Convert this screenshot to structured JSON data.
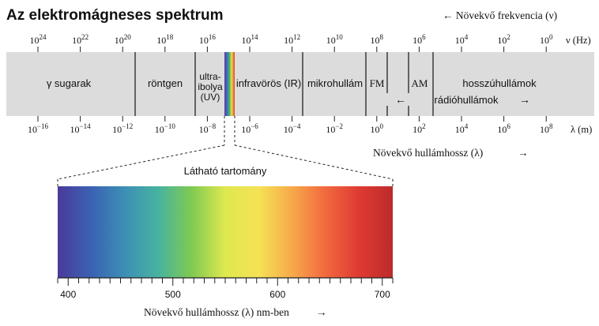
{
  "title": "Az elektromágneses spektrum",
  "freq_axis": {
    "heading": "← Növekvő frekvencia (ν)",
    "unit": "ν (Hz)",
    "ticks": [
      {
        "base": "10",
        "exp": "24"
      },
      {
        "base": "10",
        "exp": "22"
      },
      {
        "base": "10",
        "exp": "20"
      },
      {
        "base": "10",
        "exp": "18"
      },
      {
        "base": "10",
        "exp": "16"
      },
      {
        "base": "10",
        "exp": "14"
      },
      {
        "base": "10",
        "exp": "12"
      },
      {
        "base": "10",
        "exp": "10"
      },
      {
        "base": "10",
        "exp": "8"
      },
      {
        "base": "10",
        "exp": "6"
      },
      {
        "base": "10",
        "exp": "4"
      },
      {
        "base": "10",
        "exp": "2"
      },
      {
        "base": "10",
        "exp": "0"
      }
    ]
  },
  "wave_axis": {
    "heading": "Növekvő hullámhossz (λ)",
    "heading_arrow": "→",
    "unit": "λ (m)",
    "ticks": [
      {
        "base": "10",
        "exp": "−16"
      },
      {
        "base": "10",
        "exp": "−14"
      },
      {
        "base": "10",
        "exp": "−12"
      },
      {
        "base": "10",
        "exp": "−10"
      },
      {
        "base": "10",
        "exp": "−8"
      },
      {
        "base": "10",
        "exp": "−6"
      },
      {
        "base": "10",
        "exp": "−4"
      },
      {
        "base": "10",
        "exp": "−2"
      },
      {
        "base": "10",
        "exp": "0"
      },
      {
        "base": "10",
        "exp": "2"
      },
      {
        "base": "10",
        "exp": "4"
      },
      {
        "base": "10",
        "exp": "6"
      },
      {
        "base": "10",
        "exp": "8"
      }
    ]
  },
  "bands": {
    "gamma": "γ sugarak",
    "xray": "röntgen",
    "uv_line1": "ultra-",
    "uv_line2": "ibolya",
    "uv_line3": "(UV)",
    "ir": "infravörös (IR)",
    "micro": "mikrohullám",
    "fm": "FM",
    "am": "AM",
    "longwave": "hosszúhullámok",
    "radio": "rádióhullámok",
    "radio_arrow_left": "←",
    "radio_arrow_right": "→"
  },
  "visible": {
    "label": "Látható tartomány",
    "scale_labels": [
      "400",
      "500",
      "600",
      "700"
    ],
    "axis_label": "Növekvő hullámhossz (λ) nm-ben",
    "axis_arrow": "→"
  },
  "colors": {
    "band": "#dcdcdc",
    "divider": "#222222",
    "visible_gradient": [
      "#4b3a9a",
      "#3a62b3",
      "#3d8fb5",
      "#47b3a0",
      "#7fca52",
      "#dfe84e",
      "#f5e255",
      "#f6a94a",
      "#f2683e",
      "#de3a32",
      "#bd2a2c"
    ]
  }
}
